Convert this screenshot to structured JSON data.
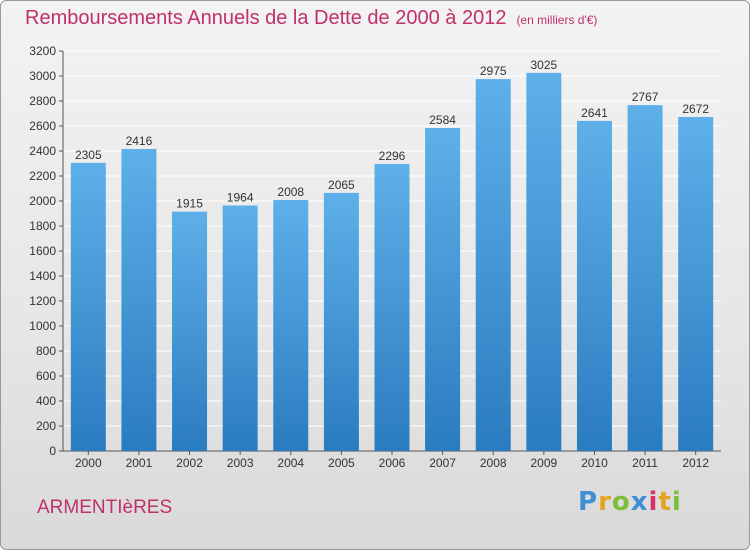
{
  "header": {
    "title": "Remboursements Annuels de la Dette de 2000 à 2012",
    "unit": "(en milliers d'€)"
  },
  "footer": {
    "city": "ARMENTIèRES",
    "logo": [
      "P",
      "r",
      "o",
      "x",
      "i",
      "t",
      "i"
    ]
  },
  "colors": {
    "bar_top": "#5eb0ea",
    "bar_bottom": "#2a7cc0",
    "title": "#c0306a",
    "grid": "#ffffff"
  },
  "chart_data": {
    "type": "bar",
    "title": "Remboursements Annuels de la Dette de 2000 à 2012",
    "xlabel": "",
    "ylabel": "",
    "categories": [
      "2000",
      "2001",
      "2002",
      "2003",
      "2004",
      "2005",
      "2006",
      "2007",
      "2008",
      "2009",
      "2010",
      "2011",
      "2012"
    ],
    "values": [
      2305,
      2416,
      1915,
      1964,
      2008,
      2065,
      2296,
      2584,
      2975,
      3025,
      2641,
      2767,
      2672
    ],
    "ylim": [
      0,
      3200
    ],
    "yticks": [
      0,
      200,
      400,
      600,
      800,
      1000,
      1200,
      1400,
      1600,
      1800,
      2000,
      2200,
      2400,
      2600,
      2800,
      3000,
      3200
    ],
    "grid": true,
    "data_labels": true
  }
}
